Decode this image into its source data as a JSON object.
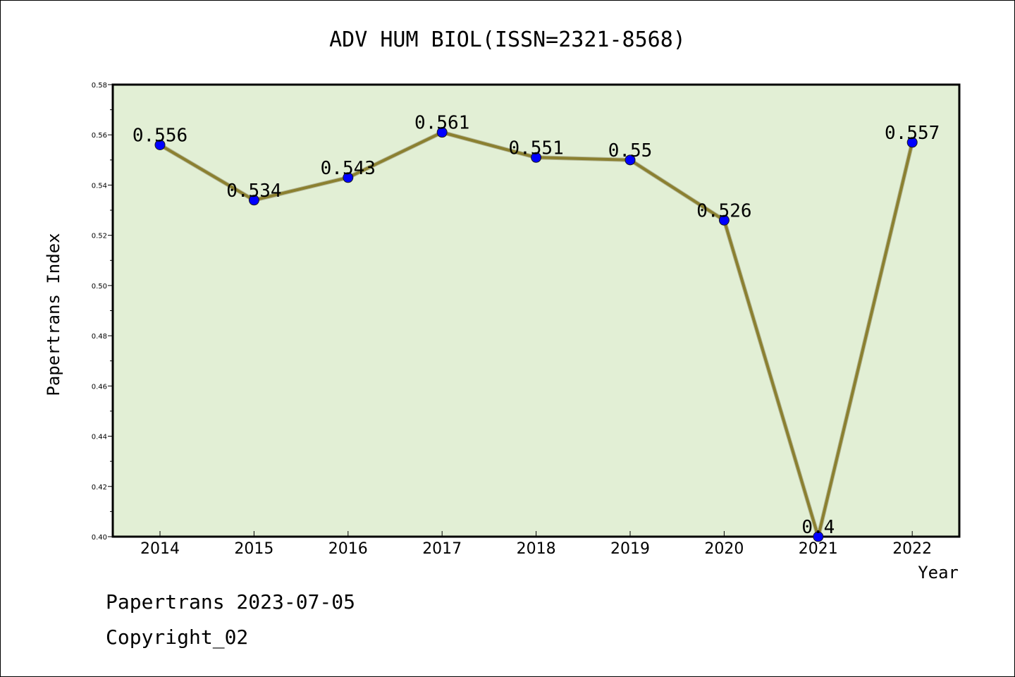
{
  "chart_data": {
    "type": "line",
    "title": "ADV HUM BIOL(ISSN=2321-8568)",
    "xlabel": "Year",
    "ylabel": "Papertrans Index",
    "categories": [
      "2014",
      "2015",
      "2016",
      "2017",
      "2018",
      "2019",
      "2020",
      "2021",
      "2022"
    ],
    "values": [
      0.556,
      0.534,
      0.543,
      0.561,
      0.551,
      0.55,
      0.526,
      0.4,
      0.557
    ],
    "data_labels": [
      "0.556",
      "0.534",
      "0.543",
      "0.561",
      "0.551",
      "0.55",
      "0.526",
      "0.4",
      "0.557"
    ],
    "ylim": [
      0.4,
      0.58
    ],
    "yticks": [
      "0.40",
      "0.42",
      "0.44",
      "0.46",
      "0.48",
      "0.50",
      "0.52",
      "0.54",
      "0.56",
      "0.58"
    ],
    "grid": false,
    "colors": {
      "plot_background": "#e2efd5",
      "line": "#8b8030",
      "marker": "#0000ff"
    }
  },
  "footer": {
    "line1": "Papertrans 2023-07-05",
    "line2": "Copyright_02"
  }
}
